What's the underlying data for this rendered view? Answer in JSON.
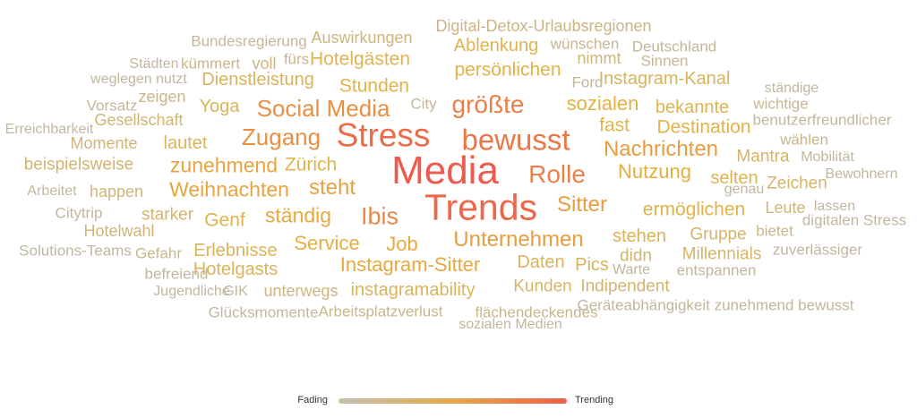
{
  "legend": {
    "left_label": "Fading",
    "right_label": "Trending",
    "colors": [
      "#c8c0ae",
      "#e6a84a",
      "#ef5f4a"
    ]
  },
  "chart_data": {
    "type": "wordcloud",
    "color_scale": {
      "low": "#bdb7aa",
      "mid": "#e6b23c",
      "high": "#ee5b4c"
    },
    "words": [
      {
        "text": "Media",
        "weight": 1.0,
        "trend": 1.0
      },
      {
        "text": "Trends",
        "weight": 0.92,
        "trend": 0.93
      },
      {
        "text": "Stress",
        "weight": 0.82,
        "trend": 0.9
      },
      {
        "text": "bewusst",
        "weight": 0.72,
        "trend": 0.84
      },
      {
        "text": "größte",
        "weight": 0.6,
        "trend": 0.8
      },
      {
        "text": "Rolle",
        "weight": 0.6,
        "trend": 0.78
      },
      {
        "text": "Ibis",
        "weight": 0.56,
        "trend": 0.75
      },
      {
        "text": "Social Media",
        "weight": 0.52,
        "trend": 0.7
      },
      {
        "text": "Zugang",
        "weight": 0.52,
        "trend": 0.7
      },
      {
        "text": "Unternehmen",
        "weight": 0.48,
        "trend": 0.62
      },
      {
        "text": "Sitter",
        "weight": 0.48,
        "trend": 0.62
      },
      {
        "text": "Nachrichten",
        "weight": 0.47,
        "trend": 0.62
      },
      {
        "text": "steht",
        "weight": 0.47,
        "trend": 0.6
      },
      {
        "text": "Weihnachten",
        "weight": 0.45,
        "trend": 0.58
      },
      {
        "text": "zunehmend",
        "weight": 0.45,
        "trend": 0.58
      },
      {
        "text": "ständig",
        "weight": 0.44,
        "trend": 0.55
      },
      {
        "text": "Instagram-Sitter",
        "weight": 0.43,
        "trend": 0.55
      },
      {
        "text": "Job",
        "weight": 0.43,
        "trend": 0.55
      },
      {
        "text": "Service",
        "weight": 0.42,
        "trend": 0.52
      },
      {
        "text": "Nutzung",
        "weight": 0.42,
        "trend": 0.52
      },
      {
        "text": "sozialen",
        "weight": 0.41,
        "trend": 0.48
      },
      {
        "text": "Stunden",
        "weight": 0.4,
        "trend": 0.45
      },
      {
        "text": "persönlichen",
        "weight": 0.4,
        "trend": 0.45
      },
      {
        "text": "Destination",
        "weight": 0.4,
        "trend": 0.45
      },
      {
        "text": "ermöglichen",
        "weight": 0.4,
        "trend": 0.45
      },
      {
        "text": "fast",
        "weight": 0.4,
        "trend": 0.45
      },
      {
        "text": "Zürich",
        "weight": 0.38,
        "trend": 0.42
      },
      {
        "text": "Genf",
        "weight": 0.38,
        "trend": 0.42
      },
      {
        "text": "Hotelgästen",
        "weight": 0.37,
        "trend": 0.4
      },
      {
        "text": "Ablenkung",
        "weight": 0.36,
        "trend": 0.4
      },
      {
        "text": "bekannte",
        "weight": 0.36,
        "trend": 0.4
      },
      {
        "text": "selten",
        "weight": 0.36,
        "trend": 0.4
      },
      {
        "text": "stehen",
        "weight": 0.35,
        "trend": 0.38
      },
      {
        "text": "Daten",
        "weight": 0.35,
        "trend": 0.38
      },
      {
        "text": "Erlebnisse",
        "weight": 0.35,
        "trend": 0.36
      },
      {
        "text": "Hotelgasts",
        "weight": 0.35,
        "trend": 0.36
      },
      {
        "text": "Dienstleistung",
        "weight": 0.35,
        "trend": 0.36
      },
      {
        "text": "instagramability",
        "weight": 0.34,
        "trend": 0.35
      },
      {
        "text": "Instagram-Kanal",
        "weight": 0.34,
        "trend": 0.35
      },
      {
        "text": "lautet",
        "weight": 0.34,
        "trend": 0.35
      },
      {
        "text": "Yoga",
        "weight": 0.34,
        "trend": 0.35
      },
      {
        "text": "Pics",
        "weight": 0.34,
        "trend": 0.35
      },
      {
        "text": "starker",
        "weight": 0.33,
        "trend": 0.3
      },
      {
        "text": "Mantra",
        "weight": 0.33,
        "trend": 0.3
      },
      {
        "text": "Millennials",
        "weight": 0.33,
        "trend": 0.3
      },
      {
        "text": "Zeichen",
        "weight": 0.33,
        "trend": 0.3
      },
      {
        "text": "Kunden",
        "weight": 0.32,
        "trend": 0.3
      },
      {
        "text": "Gruppe",
        "weight": 0.32,
        "trend": 0.28
      },
      {
        "text": "didn",
        "weight": 0.32,
        "trend": 0.28
      },
      {
        "text": "Indipendent",
        "weight": 0.31,
        "trend": 0.26
      },
      {
        "text": "beispielsweise",
        "weight": 0.31,
        "trend": 0.26
      },
      {
        "text": "Gesellschaft",
        "weight": 0.3,
        "trend": 0.24
      },
      {
        "text": "Momente",
        "weight": 0.3,
        "trend": 0.22
      },
      {
        "text": "happen",
        "weight": 0.3,
        "trend": 0.22
      },
      {
        "text": "Hotelwahl",
        "weight": 0.3,
        "trend": 0.22
      },
      {
        "text": "Leute",
        "weight": 0.3,
        "trend": 0.22
      },
      {
        "text": "Auswirkungen",
        "weight": 0.28,
        "trend": 0.2
      },
      {
        "text": "Digital-Detox-Urlaubsregionen",
        "weight": 0.29,
        "trend": 0.18
      },
      {
        "text": "nimmt",
        "weight": 0.28,
        "trend": 0.2
      },
      {
        "text": "zeigen",
        "weight": 0.28,
        "trend": 0.18
      },
      {
        "text": "voll",
        "weight": 0.28,
        "trend": 0.18
      },
      {
        "text": "kümmert",
        "weight": 0.27,
        "trend": 0.16
      },
      {
        "text": "fürs",
        "weight": 0.27,
        "trend": 0.16
      },
      {
        "text": "Gefahr",
        "weight": 0.27,
        "trend": 0.15
      },
      {
        "text": "unterwegs",
        "weight": 0.28,
        "trend": 0.18
      },
      {
        "text": "Arbeitsplatzverlust",
        "weight": 0.27,
        "trend": 0.15
      },
      {
        "text": "flächendeckendes",
        "weight": 0.27,
        "trend": 0.15
      },
      {
        "text": "bietet",
        "weight": 0.27,
        "trend": 0.15
      },
      {
        "text": "wählen",
        "weight": 0.26,
        "trend": 0.14
      },
      {
        "text": "wichtige",
        "weight": 0.26,
        "trend": 0.12
      },
      {
        "text": "Sinnen",
        "weight": 0.26,
        "trend": 0.12
      },
      {
        "text": "wünschen",
        "weight": 0.25,
        "trend": 0.12
      },
      {
        "text": "Bundesregierung",
        "weight": 0.24,
        "trend": 0.08
      },
      {
        "text": "Deutschland",
        "weight": 0.24,
        "trend": 0.08
      },
      {
        "text": "Städten",
        "weight": 0.23,
        "trend": 0.05
      },
      {
        "text": "weglegen nutzt",
        "weight": 0.23,
        "trend": 0.05
      },
      {
        "text": "Vorsatz",
        "weight": 0.24,
        "trend": 0.06
      },
      {
        "text": "City",
        "weight": 0.24,
        "trend": 0.06
      },
      {
        "text": "Ford",
        "weight": 0.24,
        "trend": 0.06
      },
      {
        "text": "ständige",
        "weight": 0.23,
        "trend": 0.05
      },
      {
        "text": "Erreichbarkeit",
        "weight": 0.23,
        "trend": 0.05
      },
      {
        "text": "benutzerfreundlicher",
        "weight": 0.24,
        "trend": 0.05
      },
      {
        "text": "Mobilität",
        "weight": 0.23,
        "trend": 0.05
      },
      {
        "text": "Bewohnern",
        "weight": 0.23,
        "trend": 0.05
      },
      {
        "text": "Arbeitet",
        "weight": 0.23,
        "trend": 0.05
      },
      {
        "text": "genau",
        "weight": 0.22,
        "trend": 0.04
      },
      {
        "text": "Citytrip",
        "weight": 0.24,
        "trend": 0.06
      },
      {
        "text": "lassen",
        "weight": 0.23,
        "trend": 0.05
      },
      {
        "text": "digitalen Stress",
        "weight": 0.24,
        "trend": 0.05
      },
      {
        "text": "Solutions-Teams",
        "weight": 0.24,
        "trend": 0.05
      },
      {
        "text": "zuverlässiger",
        "weight": 0.24,
        "trend": 0.05
      },
      {
        "text": "befreiend",
        "weight": 0.24,
        "trend": 0.05
      },
      {
        "text": "Warte",
        "weight": 0.23,
        "trend": 0.05
      },
      {
        "text": "entspannen",
        "weight": 0.24,
        "trend": 0.05
      },
      {
        "text": "Jugendliche",
        "weight": 0.23,
        "trend": 0.05
      },
      {
        "text": "GIK",
        "weight": 0.23,
        "trend": 0.05
      },
      {
        "text": "Geräteabhängigkeit zunehmend bewusst",
        "weight": 0.25,
        "trend": 0.06
      },
      {
        "text": "Glücksmomente",
        "weight": 0.24,
        "trend": 0.05
      },
      {
        "text": "sozialen Medien",
        "weight": 0.23,
        "trend": 0.05
      }
    ]
  }
}
